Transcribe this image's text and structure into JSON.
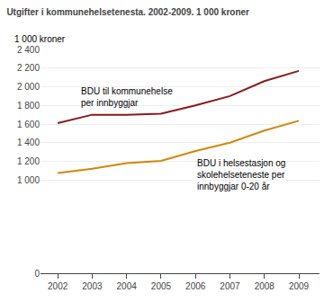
{
  "chart_data": {
    "type": "line",
    "title": "Utgifter i kommunehelsetenesta. 2002-2009. 1 000 kroner",
    "ylabel": "1 000 kroner",
    "x": [
      2002,
      2003,
      2004,
      2005,
      2006,
      2007,
      2008,
      2009
    ],
    "series": [
      {
        "name": "BDU til kommunehelse\nper innbyggjar",
        "color": "#8B1A1A",
        "values": [
          1610,
          1700,
          1700,
          1710,
          1800,
          1900,
          2060,
          2170
        ]
      },
      {
        "name": "BDU i helsestasjon og\nskolehelseteneste per\ninnbyggjar 0-20 år",
        "color": "#D4860A",
        "values": [
          1075,
          1120,
          1180,
          1205,
          1310,
          1400,
          1530,
          1635
        ]
      }
    ],
    "xlim": [
      2001.5,
      2009.6
    ],
    "xticks": [
      2002,
      2003,
      2004,
      2005,
      2006,
      2007,
      2008,
      2009
    ],
    "ylim": [
      0,
      2400
    ],
    "yticks": [
      0,
      {
        "value": 1000,
        "label": "1 000"
      },
      {
        "value": 1200,
        "label": "1 200"
      },
      {
        "value": 1400,
        "label": "1 400"
      },
      {
        "value": 1600,
        "label": "1 600"
      },
      {
        "value": 1800,
        "label": "1 800"
      },
      {
        "value": 2000,
        "label": "2 000"
      },
      {
        "value": 2200,
        "label": "2 200"
      },
      {
        "value": 2400,
        "label": "2 400"
      }
    ],
    "grid": true
  }
}
